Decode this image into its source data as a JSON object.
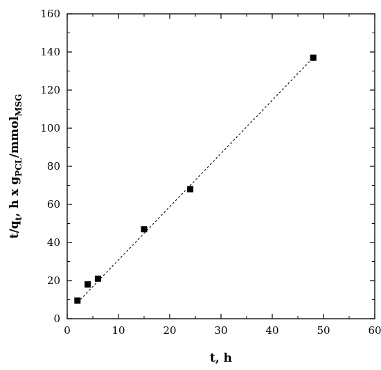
{
  "chart_data": {
    "type": "scatter",
    "title": "",
    "xlabel": "t, h",
    "ylabel": {
      "parts": [
        {
          "text": "t/q",
          "sub": false
        },
        {
          "text": "t",
          "sub": true
        },
        {
          "text": ", h x g",
          "sub": false
        },
        {
          "text": "PCL",
          "sub": true
        },
        {
          "text": "/mmol",
          "sub": false
        },
        {
          "text": "MSG",
          "sub": true
        }
      ]
    },
    "xlim": [
      0,
      60
    ],
    "ylim": [
      0,
      160
    ],
    "xticks": [
      0,
      10,
      20,
      30,
      40,
      50,
      60
    ],
    "yticks": [
      0,
      20,
      40,
      60,
      80,
      100,
      120,
      140,
      160
    ],
    "grid": false,
    "legend": "none",
    "series": [
      {
        "marker": "square",
        "color": "#000000",
        "points": [
          {
            "x": 2,
            "y": 9.5
          },
          {
            "x": 4,
            "y": 18
          },
          {
            "x": 6,
            "y": 21
          },
          {
            "x": 15,
            "y": 47
          },
          {
            "x": 24,
            "y": 68
          },
          {
            "x": 48,
            "y": 137
          }
        ]
      }
    ],
    "fit_line": {
      "style": "dashed",
      "color": "#000000",
      "x": [
        2,
        48
      ],
      "y": [
        8.5,
        137
      ]
    }
  }
}
